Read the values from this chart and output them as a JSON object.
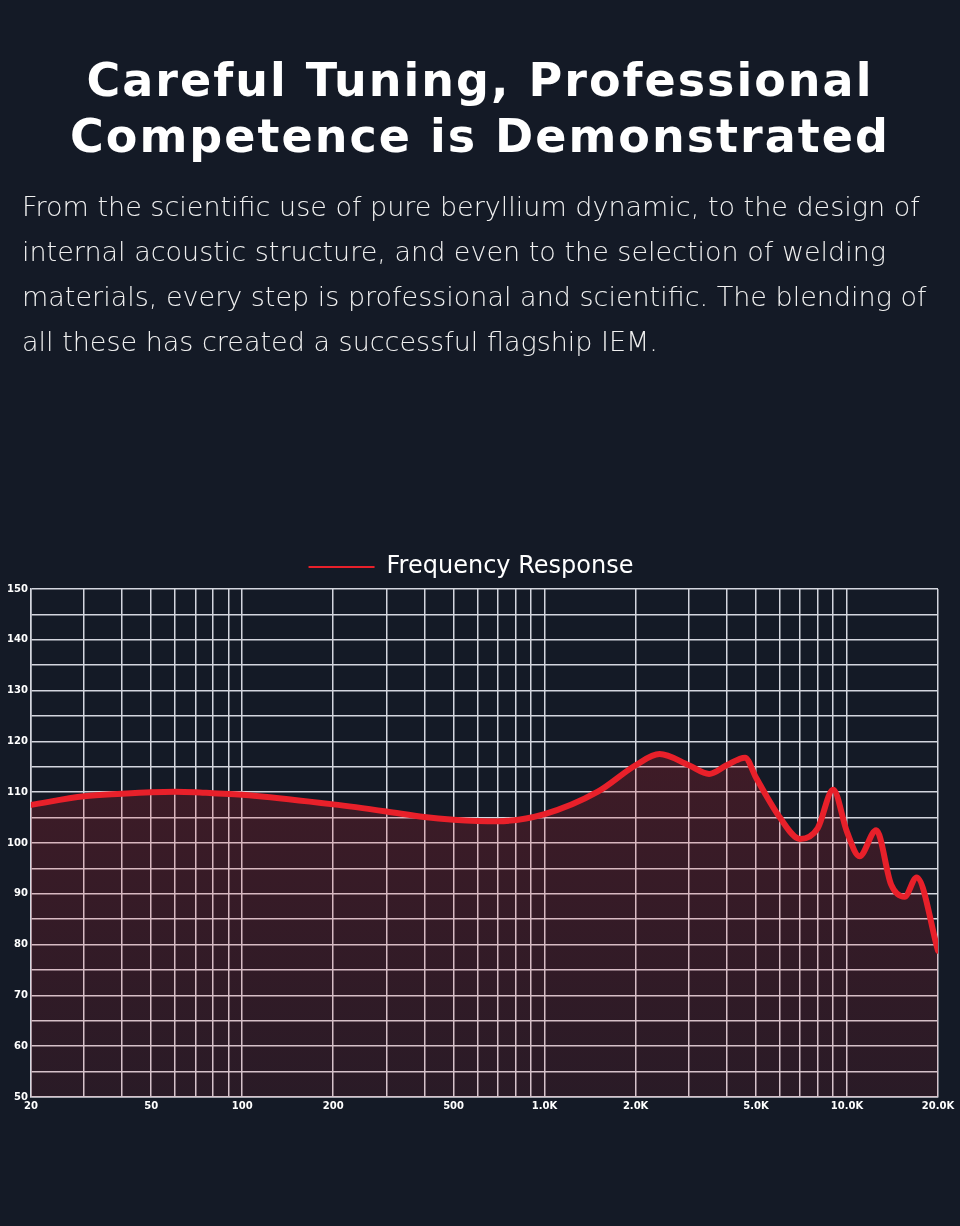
{
  "chart_data": {
    "type": "area",
    "title": "Careful Tuning, Professional Competence is Demonstrated",
    "subtitle": "From the scientific use of pure beryllium dynamic, to the design of internal acoustic structure, and even to the selection of welding materials, every step is professional and scientific. The blending of all these has created a successful flagship IEM.",
    "log": "x",
    "grid": true,
    "legend": "top",
    "marker": "none",
    "line_style": "solid",
    "xlim": [
      20,
      20000
    ],
    "xticks": [
      20,
      {
        "value": 30,
        "label": null
      },
      {
        "value": 40,
        "label": null
      },
      50,
      {
        "value": 60,
        "label": null
      },
      {
        "value": 70,
        "label": null
      },
      {
        "value": 80,
        "label": null
      },
      {
        "value": 90,
        "label": null
      },
      100,
      200,
      {
        "value": 300,
        "label": null
      },
      {
        "value": 400,
        "label": null
      },
      500,
      {
        "value": 600,
        "label": null
      },
      {
        "value": 700,
        "label": null
      },
      {
        "value": 800,
        "label": null
      },
      {
        "value": 900,
        "label": null
      },
      {
        "value": 1000,
        "label": "1.0K"
      },
      {
        "value": 2000,
        "label": "2.0K"
      },
      {
        "value": 3000,
        "label": null
      },
      {
        "value": 4000,
        "label": null
      },
      {
        "value": 5000,
        "label": "5.0K"
      },
      {
        "value": 6000,
        "label": null
      },
      {
        "value": 7000,
        "label": null
      },
      {
        "value": 8000,
        "label": null
      },
      {
        "value": 9000,
        "label": null
      },
      {
        "value": 10000,
        "label": "10.0K"
      },
      {
        "value": 20000,
        "label": "20.0K"
      }
    ],
    "ylim": [
      50,
      150
    ],
    "yticks": [
      50,
      {
        "value": 55,
        "label": null
      },
      60,
      {
        "value": 65,
        "label": null
      },
      70,
      {
        "value": 75,
        "label": null
      },
      80,
      {
        "value": 85,
        "label": null
      },
      90,
      {
        "value": 95,
        "label": null
      },
      100,
      {
        "value": 105,
        "label": null
      },
      110,
      {
        "value": 115,
        "label": null
      },
      120,
      {
        "value": 125,
        "label": null
      },
      130,
      {
        "value": 135,
        "label": null
      },
      140,
      {
        "value": 145,
        "label": null
      },
      150
    ],
    "series": [
      {
        "name": "Frequency Response",
        "color": "#e8202a",
        "x": [
          20,
          30,
          40,
          50,
          60,
          70,
          80,
          100,
          200,
          300,
          400,
          500,
          700,
          1000,
          1500,
          2000,
          2400,
          3000,
          3500,
          4000,
          4600,
          5000,
          6000,
          7000,
          8000,
          9000,
          10000,
          11000,
          12500,
          14000,
          15500,
          17000,
          20000
        ],
        "values": [
          107.5,
          109.2,
          109.7,
          110,
          110.1,
          110,
          109.8,
          109.5,
          107.6,
          106.2,
          105.1,
          104.6,
          104.3,
          105.7,
          110.1,
          115.3,
          117.5,
          115.3,
          113.6,
          115.3,
          116.8,
          112.9,
          105,
          100.8,
          102.9,
          110.5,
          102.2,
          97.4,
          102.5,
          91.8,
          89.4,
          93.2,
          78.8
        ]
      }
    ]
  }
}
